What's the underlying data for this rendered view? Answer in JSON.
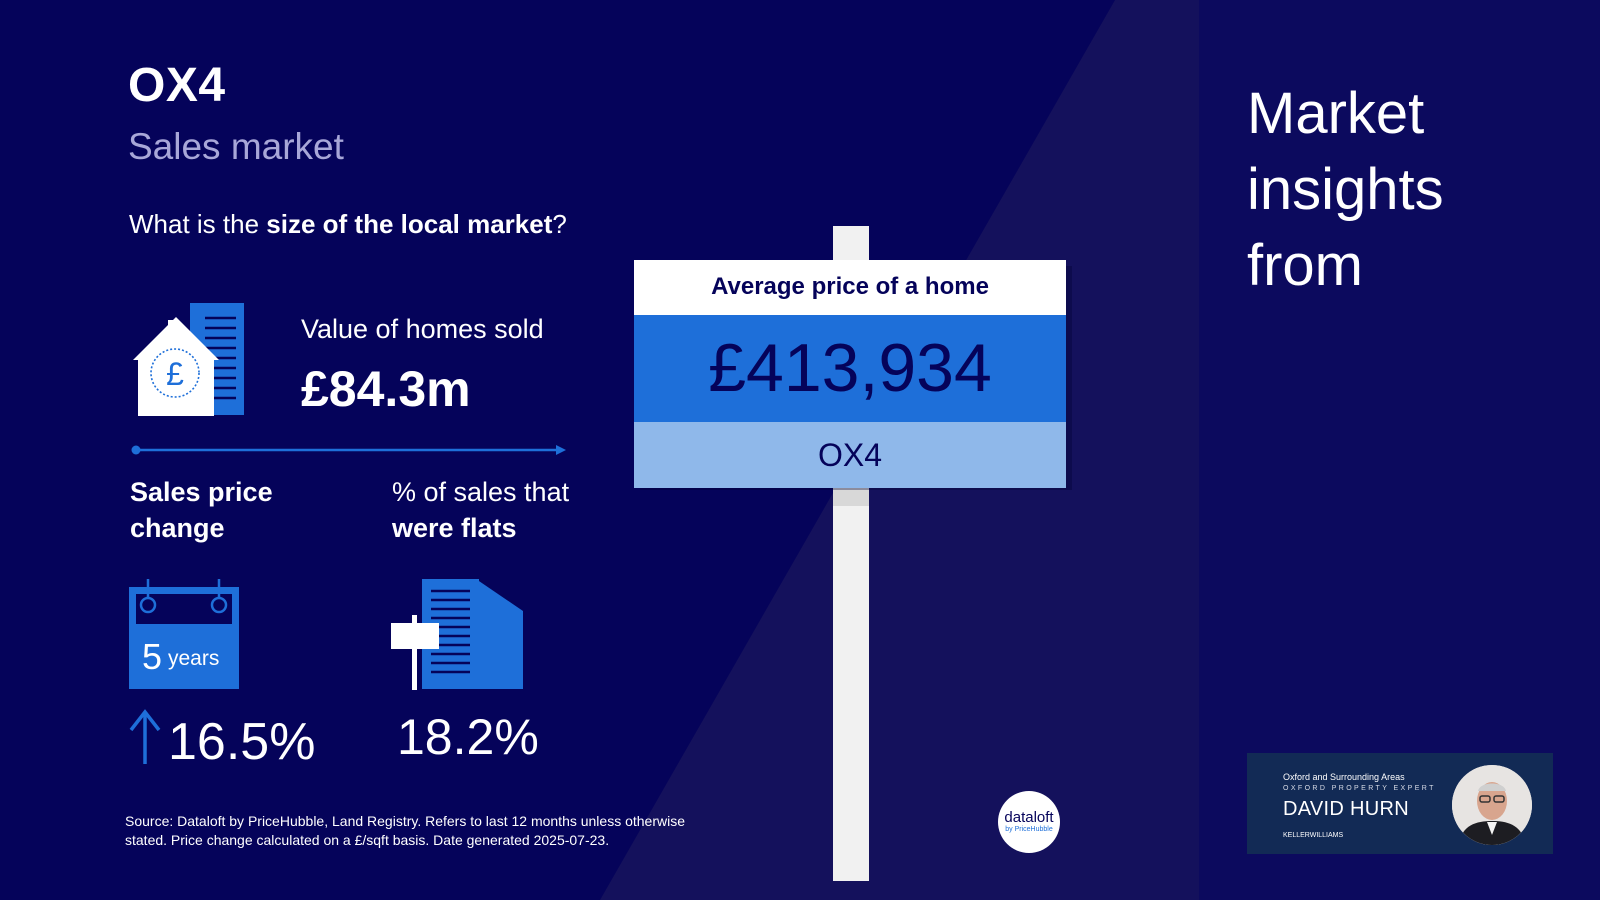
{
  "header": {
    "postcode": "OX4",
    "subtitle": "Sales market",
    "question_prefix": "What is the ",
    "question_bold": "size of the local market",
    "question_suffix": "?"
  },
  "value_sold": {
    "label": "Value of homes sold",
    "amount": "£84.3m",
    "icon": "house-pound-icon"
  },
  "price_change": {
    "label_line1": "Sales price",
    "label_line2": "change",
    "period_number": "5",
    "period_unit": "years",
    "value": "16.5%",
    "direction": "up",
    "icon": "calendar-icon"
  },
  "flats": {
    "label_line1": "% of sales that",
    "label_line2": "were flats",
    "value": "18.2%",
    "icon": "flats-building-icon"
  },
  "sign": {
    "title": "Average price of a home",
    "price": "£413,934",
    "postcode": "OX4"
  },
  "source": {
    "line1": "Source: Dataloft by PriceHubble, Land Registry. Refers to last 12 months unless otherwise",
    "line2": "stated. Price change calculated on a £/sqft basis. Date generated 2025-07-23."
  },
  "insights": {
    "line1": "Market",
    "line2": "insights",
    "line3": "from"
  },
  "logo": {
    "name": "dataloft",
    "sub": "by PriceHubble"
  },
  "agent_card": {
    "area": "Oxford and Surrounding Areas",
    "role": "OXFORD PROPERTY EXPERT",
    "name": "DAVID HURN",
    "brand": "KELLERWILLIAMS"
  },
  "colors": {
    "background": "#05035a",
    "panel": "#0c0a5e",
    "accent_blue": "#1e6fd9",
    "light_blue": "#8fb8ea",
    "white": "#ffffff"
  }
}
